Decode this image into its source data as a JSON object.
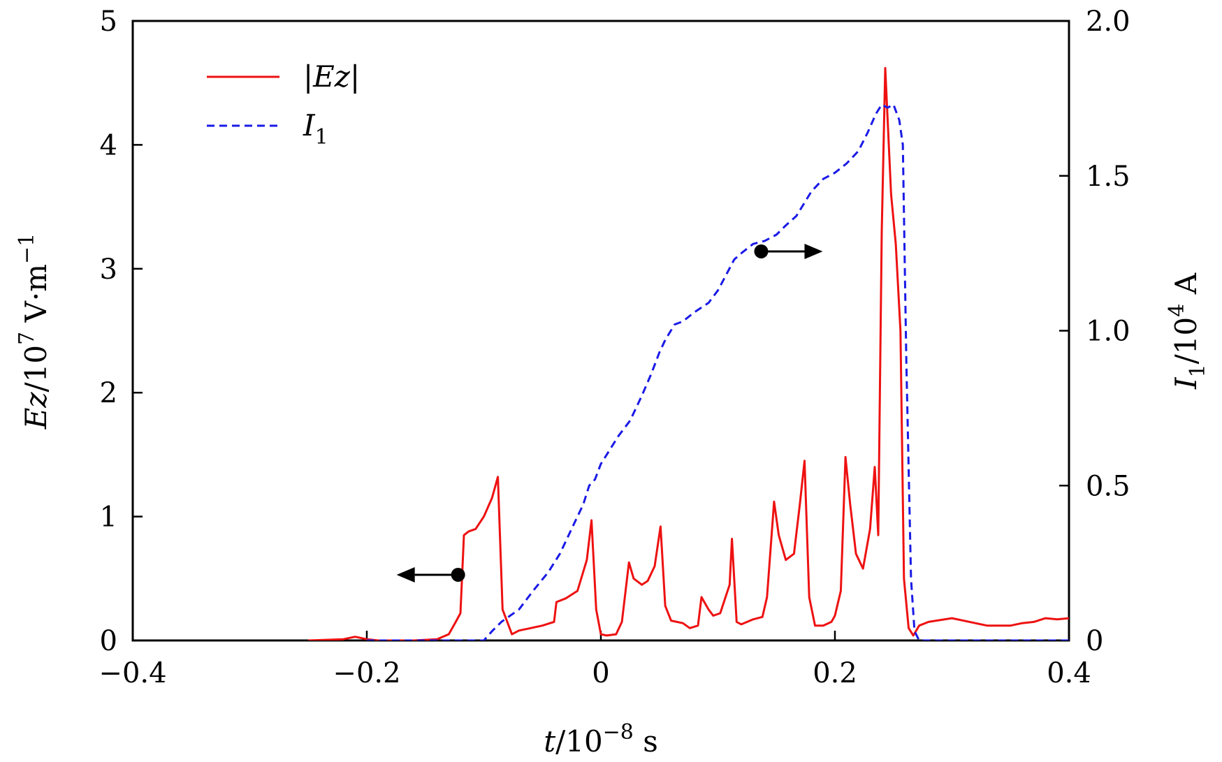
{
  "chart_data": {
    "type": "line",
    "title": "",
    "xlabel": {
      "var": "t",
      "base": "/10",
      "exp": "−8",
      "unit": " s"
    },
    "ylabel_left": {
      "var": "Ez",
      "base": "/10",
      "exp": "7",
      "unit": " V·m",
      "unit_exp": "−1"
    },
    "ylabel_right": {
      "var": "I",
      "sub": "1",
      "base": "/10",
      "exp": "4",
      "unit": " A"
    },
    "xlim": [
      -0.4,
      0.4
    ],
    "ylim_left": [
      0,
      5
    ],
    "ylim_right": [
      0,
      2.0
    ],
    "x_ticks": [
      "−0.4",
      "−0.2",
      "0",
      "0.2",
      "0.4"
    ],
    "y_left_ticks": [
      "0",
      "1",
      "2",
      "3",
      "4",
      "5"
    ],
    "y_right_ticks": [
      "0",
      "0.5",
      "1.0",
      "1.5",
      "2.0"
    ],
    "legend_position": "upper-left",
    "series": [
      {
        "name": "|Ez|",
        "legend_label": "|Ez|",
        "axis": "left",
        "color": "#ee1111",
        "style": "solid",
        "points": [
          [
            -0.25,
            0.0
          ],
          [
            -0.22,
            0.01
          ],
          [
            -0.21,
            0.03
          ],
          [
            -0.2,
            0.01
          ],
          [
            -0.19,
            0.0
          ],
          [
            -0.16,
            0.0
          ],
          [
            -0.14,
            0.01
          ],
          [
            -0.13,
            0.05
          ],
          [
            -0.124,
            0.15
          ],
          [
            -0.12,
            0.22
          ],
          [
            -0.117,
            0.85
          ],
          [
            -0.113,
            0.88
          ],
          [
            -0.107,
            0.9
          ],
          [
            -0.1,
            1.0
          ],
          [
            -0.093,
            1.15
          ],
          [
            -0.088,
            1.32
          ],
          [
            -0.084,
            0.25
          ],
          [
            -0.076,
            0.05
          ],
          [
            -0.07,
            0.08
          ],
          [
            -0.06,
            0.1
          ],
          [
            -0.05,
            0.12
          ],
          [
            -0.04,
            0.15
          ],
          [
            -0.038,
            0.31
          ],
          [
            -0.03,
            0.34
          ],
          [
            -0.02,
            0.4
          ],
          [
            -0.012,
            0.65
          ],
          [
            -0.008,
            0.97
          ],
          [
            -0.004,
            0.25
          ],
          [
            0.0,
            0.05
          ],
          [
            0.005,
            0.04
          ],
          [
            0.013,
            0.05
          ],
          [
            0.018,
            0.15
          ],
          [
            0.024,
            0.63
          ],
          [
            0.028,
            0.5
          ],
          [
            0.035,
            0.45
          ],
          [
            0.04,
            0.48
          ],
          [
            0.046,
            0.6
          ],
          [
            0.051,
            0.92
          ],
          [
            0.055,
            0.28
          ],
          [
            0.06,
            0.16
          ],
          [
            0.07,
            0.14
          ],
          [
            0.076,
            0.1
          ],
          [
            0.083,
            0.12
          ],
          [
            0.086,
            0.35
          ],
          [
            0.092,
            0.25
          ],
          [
            0.096,
            0.2
          ],
          [
            0.102,
            0.22
          ],
          [
            0.11,
            0.45
          ],
          [
            0.112,
            0.82
          ],
          [
            0.116,
            0.15
          ],
          [
            0.12,
            0.13
          ],
          [
            0.13,
            0.17
          ],
          [
            0.138,
            0.19
          ],
          [
            0.142,
            0.35
          ],
          [
            0.148,
            1.12
          ],
          [
            0.152,
            0.85
          ],
          [
            0.158,
            0.65
          ],
          [
            0.165,
            0.7
          ],
          [
            0.17,
            1.1
          ],
          [
            0.174,
            1.45
          ],
          [
            0.178,
            0.35
          ],
          [
            0.183,
            0.12
          ],
          [
            0.19,
            0.12
          ],
          [
            0.197,
            0.15
          ],
          [
            0.2,
            0.2
          ],
          [
            0.205,
            0.4
          ],
          [
            0.209,
            1.48
          ],
          [
            0.213,
            1.1
          ],
          [
            0.218,
            0.7
          ],
          [
            0.224,
            0.58
          ],
          [
            0.23,
            0.9
          ],
          [
            0.234,
            1.4
          ],
          [
            0.237,
            0.85
          ],
          [
            0.24,
            3.3
          ],
          [
            0.243,
            4.62
          ],
          [
            0.248,
            3.6
          ],
          [
            0.252,
            3.2
          ],
          [
            0.256,
            2.5
          ],
          [
            0.259,
            0.5
          ],
          [
            0.263,
            0.1
          ],
          [
            0.267,
            0.04
          ],
          [
            0.272,
            0.12
          ],
          [
            0.28,
            0.15
          ],
          [
            0.3,
            0.18
          ],
          [
            0.32,
            0.14
          ],
          [
            0.33,
            0.12
          ],
          [
            0.35,
            0.12
          ],
          [
            0.36,
            0.14
          ],
          [
            0.37,
            0.15
          ],
          [
            0.38,
            0.18
          ],
          [
            0.39,
            0.17
          ],
          [
            0.4,
            0.18
          ]
        ]
      },
      {
        "name": "I1",
        "legend_label": "I",
        "legend_sub": "1",
        "axis": "right",
        "color": "#1a1ae6",
        "style": "dashed",
        "points": [
          [
            -0.2,
            0.0
          ],
          [
            -0.15,
            0.0
          ],
          [
            -0.1,
            0.0
          ],
          [
            -0.093,
            0.03
          ],
          [
            -0.085,
            0.06
          ],
          [
            -0.07,
            0.1
          ],
          [
            -0.058,
            0.16
          ],
          [
            -0.045,
            0.22
          ],
          [
            -0.035,
            0.28
          ],
          [
            -0.025,
            0.36
          ],
          [
            -0.015,
            0.44
          ],
          [
            -0.01,
            0.5
          ],
          [
            -0.005,
            0.52
          ],
          [
            0.0,
            0.57
          ],
          [
            0.005,
            0.6
          ],
          [
            0.015,
            0.66
          ],
          [
            0.025,
            0.71
          ],
          [
            0.035,
            0.79
          ],
          [
            0.043,
            0.86
          ],
          [
            0.05,
            0.93
          ],
          [
            0.055,
            0.97
          ],
          [
            0.063,
            1.02
          ],
          [
            0.07,
            1.03
          ],
          [
            0.08,
            1.06
          ],
          [
            0.092,
            1.09
          ],
          [
            0.1,
            1.13
          ],
          [
            0.107,
            1.18
          ],
          [
            0.114,
            1.23
          ],
          [
            0.12,
            1.25
          ],
          [
            0.13,
            1.28
          ],
          [
            0.14,
            1.29
          ],
          [
            0.15,
            1.31
          ],
          [
            0.158,
            1.34
          ],
          [
            0.167,
            1.37
          ],
          [
            0.18,
            1.45
          ],
          [
            0.19,
            1.49
          ],
          [
            0.2,
            1.51
          ],
          [
            0.21,
            1.54
          ],
          [
            0.22,
            1.58
          ],
          [
            0.228,
            1.64
          ],
          [
            0.235,
            1.7
          ],
          [
            0.24,
            1.73
          ],
          [
            0.245,
            1.72
          ],
          [
            0.25,
            1.73
          ],
          [
            0.255,
            1.68
          ],
          [
            0.258,
            1.6
          ],
          [
            0.261,
            0.9
          ],
          [
            0.265,
            0.2
          ],
          [
            0.268,
            0.03
          ],
          [
            0.272,
            0.0
          ],
          [
            0.3,
            0.0
          ],
          [
            0.4,
            0.0
          ]
        ]
      }
    ],
    "annotations": [
      {
        "label": "arrow-to-left-axis",
        "x": -0.122,
        "y_left": 0.53,
        "direction": "left",
        "target_series": "|Ez|"
      },
      {
        "label": "arrow-to-right-axis",
        "x": 0.137,
        "y_left": 3.14,
        "direction": "right",
        "target_series": "I1"
      }
    ]
  }
}
